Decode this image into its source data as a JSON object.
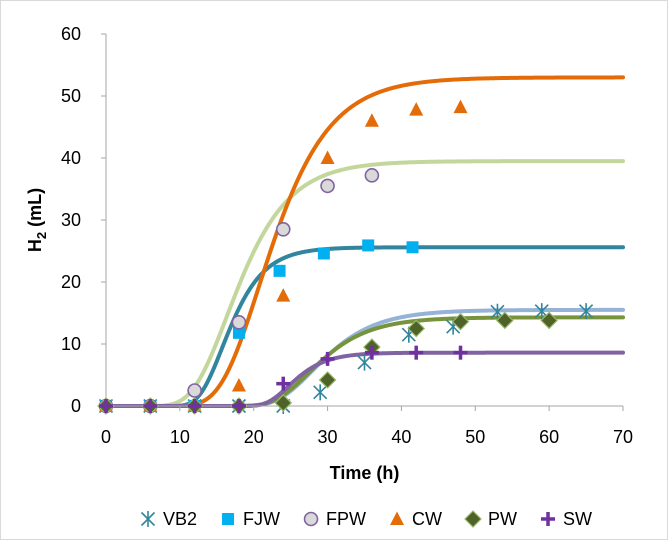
{
  "chart_data": {
    "type": "scatter",
    "title": "",
    "xlabel": "Time (h)",
    "ylabel": {
      "main": "H",
      "sub": "2",
      "rest": " (mL)"
    },
    "xlim": [
      0,
      70
    ],
    "ylim": [
      0,
      60
    ],
    "xticks": [
      0,
      10,
      20,
      30,
      40,
      50,
      60,
      70
    ],
    "yticks": [
      0,
      10,
      20,
      30,
      40,
      50,
      60
    ],
    "grid": false,
    "legend_position": "bottom",
    "series": [
      {
        "name": "VB2",
        "marker": "asterisk",
        "color": "#31859c",
        "x": [
          0,
          6,
          12,
          18,
          24,
          29,
          35,
          41,
          47,
          53,
          59,
          65
        ],
        "y": [
          0,
          0,
          0,
          0,
          0,
          2.2,
          7,
          11.5,
          12.8,
          15.2,
          15.3,
          15.3
        ],
        "fit": {
          "color": "#95b3d7",
          "P": 15.5,
          "Rm": 1.2,
          "lambda": 23.2
        }
      },
      {
        "name": "FJW",
        "marker": "square",
        "color": "#00b0f0",
        "x": [
          0,
          6,
          12,
          18,
          23.5,
          29.5,
          35.5,
          41.5
        ],
        "y": [
          0,
          0,
          0,
          11.8,
          21.8,
          24.6,
          25.9,
          25.6
        ],
        "fit": {
          "color": "#31859c",
          "P": 25.6,
          "Rm": 3.0,
          "lambda": 12.6
        }
      },
      {
        "name": "FPW",
        "marker": "circle",
        "color": "#8064a2",
        "x": [
          0,
          6,
          12,
          18,
          24,
          30,
          36
        ],
        "y": [
          0,
          0,
          2.5,
          13.5,
          28.5,
          35.5,
          37.2
        ],
        "fit": {
          "color": "#c3d69b",
          "P": 39.5,
          "Rm": 3.1,
          "lambda": 11.7
        }
      },
      {
        "name": "CW",
        "marker": "triangle",
        "color": "#e36c09",
        "x": [
          0,
          6,
          12,
          18,
          24,
          30,
          36,
          42,
          48
        ],
        "y": [
          0,
          0,
          0,
          3.3,
          17.8,
          40,
          46,
          47.8,
          48.2
        ],
        "fit": {
          "color": "#e36c09",
          "P": 53,
          "Rm": 3.7,
          "lambda": 15.5
        }
      },
      {
        "name": "PW",
        "marker": "diamond",
        "color": "#4f6228",
        "x": [
          0,
          6,
          12,
          18,
          24,
          30,
          36,
          42,
          48,
          54,
          60
        ],
        "y": [
          0,
          0,
          0,
          0,
          0.5,
          4.2,
          9.5,
          12.5,
          13.6,
          13.8,
          13.8
        ],
        "fit": {
          "color": "#77933c",
          "P": 14.3,
          "Rm": 1.15,
          "lambda": 22.8
        }
      },
      {
        "name": "SW",
        "marker": "plus",
        "color": "#7030a0",
        "x": [
          0,
          6,
          12,
          18,
          24,
          30,
          36,
          42,
          48
        ],
        "y": [
          0,
          0,
          0,
          0,
          3.6,
          7.6,
          8.6,
          8.6,
          8.6
        ],
        "fit": {
          "color": "#8064a2",
          "P": 8.6,
          "Rm": 1.1,
          "lambda": 21.8
        }
      }
    ]
  }
}
